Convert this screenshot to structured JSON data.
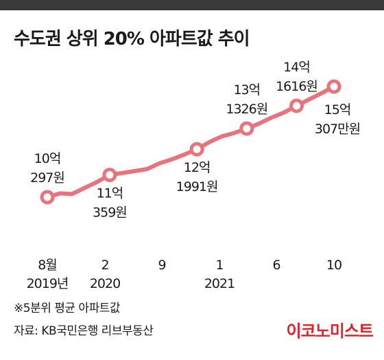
{
  "title": "수도권 상위 20% 아파트값 추이",
  "footnote": "※5분위 평균 아파트값",
  "source": "자료: KB국민은행 리브부동산",
  "brand": "이코노미스트",
  "colors": {
    "line": "#e8737d",
    "marker_fill": "#ffffff",
    "text": "#1a1a1a",
    "brand": "#e4202a",
    "topbar": "#3a3a3a"
  },
  "chart_data": {
    "type": "line",
    "title": "수도권 상위 20% 아파트값 추이",
    "unit": "만원",
    "x_labels": [
      [
        "8월",
        "2019년"
      ],
      [
        "2",
        "2020"
      ],
      [
        "9",
        ""
      ],
      [
        "1",
        "2021"
      ],
      [
        "6",
        ""
      ],
      [
        "10",
        ""
      ]
    ],
    "markers": [
      {
        "value": 100297,
        "label": [
          "10억",
          "297원"
        ]
      },
      {
        "value": 110359,
        "label": [
          "11억",
          "359원"
        ]
      },
      {
        "value": 121991,
        "label": [
          "12억",
          "1991원"
        ]
      },
      {
        "value": 131326,
        "label": [
          "13억",
          "1326원"
        ]
      },
      {
        "value": 141616,
        "label": [
          "14억",
          "1616원"
        ]
      },
      {
        "value": 150307,
        "label": [
          "15억",
          "307만원"
        ]
      }
    ],
    "approx_monthly_values": [
      100297,
      102000,
      101800,
      104500,
      107200,
      110359,
      111200,
      112100,
      113000,
      115600,
      117400,
      119600,
      121991,
      125200,
      127800,
      129300,
      131326,
      133600,
      136300,
      138600,
      141616,
      144500,
      147300,
      150307
    ],
    "ylim": [
      95000,
      155000
    ],
    "grid": false,
    "legend": false
  }
}
